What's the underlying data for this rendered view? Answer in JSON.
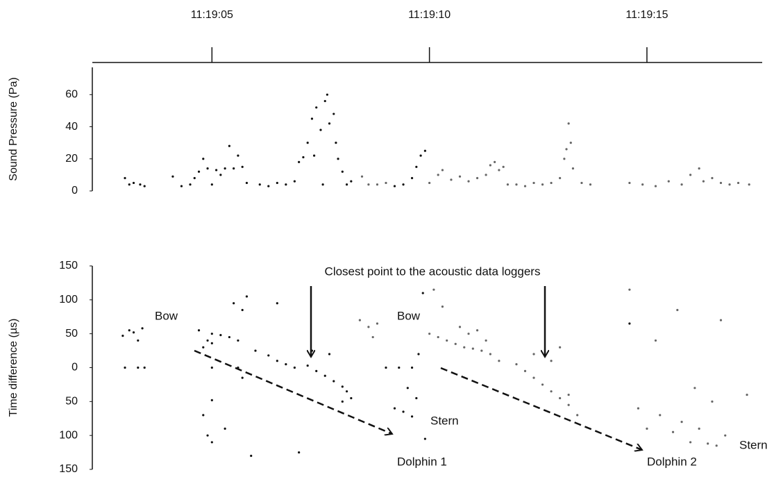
{
  "chart_data": [
    {
      "type": "scatter",
      "y_label": "Sound Pressure (Pa)",
      "xlim": [
        2.25,
        17.65
      ],
      "xticks": [
        {
          "value": 5,
          "label": "11:19:05"
        },
        {
          "value": 10,
          "label": "11:19:10"
        },
        {
          "value": 15,
          "label": "11:19:15"
        }
      ],
      "ylim": [
        0,
        77
      ],
      "yticks": [
        0,
        20,
        40,
        60
      ],
      "series": [
        {
          "color": "#111111",
          "x": [
            3.0,
            3.1,
            3.2,
            3.35,
            3.45,
            4.1,
            4.3,
            4.5,
            4.6,
            4.7,
            4.8,
            4.9,
            5.0,
            5.1,
            5.2,
            5.3,
            5.4,
            5.5,
            5.6,
            5.7,
            5.8,
            6.1,
            6.3,
            6.5,
            6.7,
            6.9,
            7.0,
            7.1,
            7.2,
            7.3,
            7.35,
            7.4,
            7.5,
            7.55,
            7.6,
            7.65,
            7.7,
            7.8,
            7.85,
            7.9,
            8.0,
            8.1,
            8.2,
            9.2,
            9.4,
            9.6,
            9.7,
            9.8,
            9.9
          ],
          "values": [
            8,
            4,
            5,
            4,
            3,
            9,
            3,
            4,
            8,
            12,
            20,
            14,
            4,
            13,
            10,
            14,
            28,
            14,
            22,
            15,
            5,
            4,
            3,
            5,
            4,
            6,
            18,
            21,
            30,
            45,
            22,
            52,
            38,
            4,
            56,
            60,
            42,
            48,
            30,
            20,
            12,
            4,
            6,
            3,
            4,
            8,
            15,
            22,
            25
          ]
        },
        {
          "color": "#666666",
          "x": [
            8.45,
            8.6,
            8.8,
            9.0,
            10.0,
            10.2,
            10.3,
            10.5,
            10.7,
            10.9,
            11.1,
            11.3,
            11.4,
            11.5,
            11.6,
            11.7,
            11.8,
            12.0,
            12.2,
            12.4,
            12.6,
            12.8,
            13.0,
            13.1,
            13.15,
            13.2,
            13.25,
            13.3,
            13.5,
            13.7,
            14.6,
            14.9,
            15.2,
            15.5,
            15.8,
            16.0,
            16.2,
            16.3,
            16.5,
            16.7,
            16.9,
            17.1,
            17.35
          ],
          "values": [
            9,
            4,
            4,
            5,
            5,
            10,
            13,
            7,
            9,
            6,
            8,
            10,
            16,
            18,
            13,
            15,
            4,
            4,
            3,
            5,
            4,
            5,
            8,
            20,
            26,
            42,
            30,
            14,
            5,
            4,
            5,
            4,
            3,
            6,
            4,
            10,
            14,
            6,
            8,
            5,
            4,
            5,
            4
          ]
        }
      ]
    },
    {
      "type": "scatter",
      "y_label": "Time difference (µs)",
      "xlim": [
        2.25,
        17.65
      ],
      "ylim": [
        -150,
        150
      ],
      "yticks": [
        {
          "value": 150,
          "label": "150"
        },
        {
          "value": 100,
          "label": "100"
        },
        {
          "value": 50,
          "label": "50"
        },
        0,
        {
          "value": -50,
          "label": "50"
        },
        {
          "value": -100,
          "label": "100"
        },
        {
          "value": -150,
          "label": "150"
        }
      ],
      "annotations": [
        "Closest point to the acoustic data loggers",
        "Bow",
        "Bow",
        "Stern",
        "Stern",
        "Dolphin 1",
        "Dolphin 2"
      ],
      "series": [
        {
          "color": "#111111",
          "x": [
            2.95,
            3.1,
            3.2,
            3.3,
            3.4,
            3.0,
            3.3,
            3.45,
            4.9,
            5.0,
            4.7,
            4.8,
            4.9,
            5.0,
            4.8,
            5.3,
            5.0,
            5.0,
            5.2,
            5.4,
            5.6,
            5.0,
            5.6,
            5.7,
            5.5,
            5.7,
            5.8,
            6.0,
            6.3,
            6.5,
            6.7,
            6.9,
            7.2,
            7.4,
            7.6,
            7.8,
            8.0,
            8.1,
            7.3,
            6.5,
            7.0,
            8.0,
            7.7,
            8.2,
            9.2,
            9.4,
            9.6,
            9.7,
            9.5,
            9.6,
            9.3,
            9.0,
            9.85,
            9.75,
            9.9,
            14.6,
            5.9
          ],
          "values": [
            47,
            55,
            52,
            40,
            58,
            0,
            0,
            0,
            40,
            36,
            55,
            30,
            -100,
            -110,
            -70,
            -90,
            -48,
            50,
            48,
            45,
            40,
            0,
            0,
            -15,
            95,
            85,
            105,
            25,
            18,
            10,
            5,
            0,
            3,
            -5,
            -12,
            -20,
            -28,
            -35,
            25,
            95,
            -125,
            -50,
            20,
            -45,
            -60,
            -65,
            -72,
            -45,
            -30,
            0,
            0,
            0,
            110,
            20,
            -105,
            65,
            -130
          ]
        },
        {
          "color": "#666666",
          "x": [
            8.4,
            8.6,
            8.7,
            8.8,
            10.0,
            10.2,
            10.4,
            10.6,
            10.8,
            11.0,
            11.2,
            11.4,
            11.6,
            10.1,
            10.3,
            10.7,
            10.9,
            11.1,
            11.3,
            12.0,
            12.2,
            12.4,
            12.6,
            12.8,
            13.0,
            13.2,
            13.4,
            12.4,
            12.8,
            13.0,
            13.2,
            14.6,
            14.8,
            15.0,
            15.3,
            15.6,
            15.8,
            16.0,
            16.2,
            16.4,
            16.6,
            16.8,
            15.2,
            15.7,
            16.1,
            16.5,
            16.7,
            17.3
          ],
          "values": [
            70,
            60,
            45,
            65,
            50,
            45,
            40,
            35,
            30,
            28,
            25,
            20,
            10,
            115,
            90,
            60,
            50,
            55,
            40,
            5,
            -5,
            -15,
            -25,
            -35,
            -45,
            -55,
            -70,
            20,
            10,
            30,
            -40,
            115,
            -60,
            -90,
            -70,
            -95,
            -80,
            -110,
            -90,
            -112,
            -115,
            -100,
            40,
            85,
            -30,
            -50,
            70,
            -40
          ]
        }
      ]
    }
  ]
}
